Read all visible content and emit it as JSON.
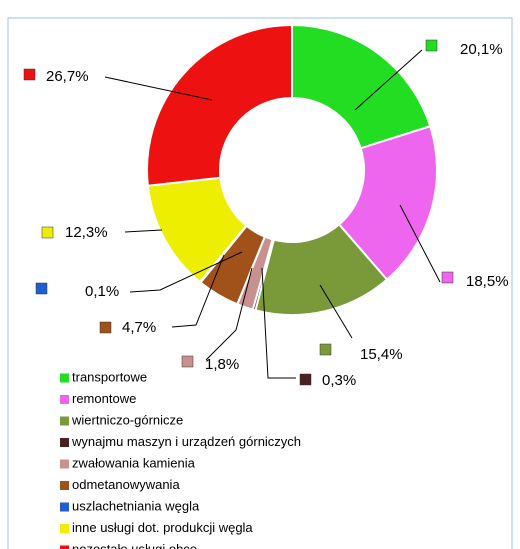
{
  "chart_data": {
    "type": "donut",
    "categories": [
      "transportowe",
      "remontowe",
      "wiertniczo-górnicze",
      "wynajmu maszyn i urządzeń górniczych",
      "zwałowania kamienia",
      "odmetanowywania",
      "uszlachetniania węgla",
      "inne usługi dot. produkcji węgla",
      "pozostałe usługi obce"
    ],
    "values": [
      20.1,
      18.5,
      15.4,
      0.3,
      1.8,
      4.7,
      0.1,
      12.3,
      26.7
    ],
    "value_labels": [
      "20,1%",
      "18,5%",
      "15,4%",
      "0,3%",
      "1,8%",
      "4,7%",
      "0,1%",
      "12,3%",
      "26,7%"
    ],
    "colors": [
      "#22dd22",
      "#ee66ee",
      "#7a9a3a",
      "#4a2020",
      "#c99090",
      "#a0521a",
      "#1f5fd0",
      "#eeee00",
      "#ee1111"
    ],
    "legend": "bottom-left"
  }
}
